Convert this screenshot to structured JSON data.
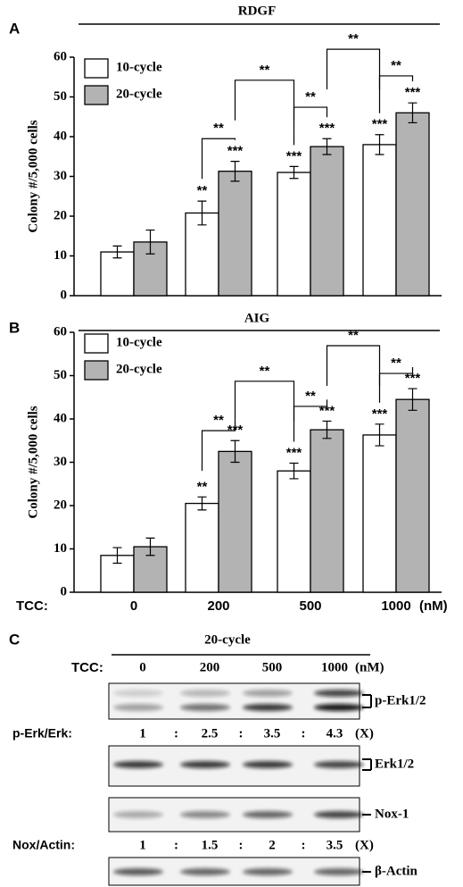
{
  "chart_data": [
    {
      "type": "bar",
      "panel": "A",
      "title": "RDGF",
      "ylabel": "Colony #/5,000 cells",
      "categories": [
        null,
        null,
        null,
        null
      ],
      "series": [
        {
          "name": "10-cycle",
          "color": "#ffffff",
          "values": [
            11,
            20.8,
            31,
            38
          ],
          "errors": [
            1.5,
            3,
            1.5,
            2.5
          ],
          "labels": [
            null,
            "**",
            "***",
            "***"
          ]
        },
        {
          "name": "20-cycle",
          "color": "#b3b3b3",
          "values": [
            13.5,
            31.3,
            37.5,
            46
          ],
          "errors": [
            3,
            2.5,
            2,
            2.5
          ],
          "labels": [
            null,
            "***",
            "***",
            "***"
          ]
        }
      ],
      "annotations": [
        "**",
        "**",
        "**",
        "**",
        "**"
      ],
      "ylim": [
        0,
        60
      ],
      "yticks": [
        0,
        10,
        20,
        30,
        40,
        50,
        60
      ],
      "legend": "upper left"
    },
    {
      "type": "bar",
      "panel": "B",
      "title": "AIG",
      "ylabel": "Colony #/5,000 cells",
      "xlabel": "TCC:",
      "xunit": "(nM)",
      "categories": [
        "0",
        "200",
        "500",
        "1000"
      ],
      "series": [
        {
          "name": "10-cycle",
          "color": "#ffffff",
          "values": [
            8.5,
            20.5,
            28,
            36.3
          ],
          "errors": [
            1.8,
            1.5,
            1.8,
            2.5
          ],
          "labels": [
            null,
            "**",
            "***",
            "***"
          ]
        },
        {
          "name": "20-cycle",
          "color": "#b3b3b3",
          "values": [
            10.5,
            32.5,
            37.5,
            44.5
          ],
          "errors": [
            2,
            2.5,
            2,
            2.5
          ],
          "labels": [
            null,
            "***",
            "***",
            "***"
          ]
        }
      ],
      "annotations": [
        "**",
        "**",
        "**",
        "**",
        "**"
      ],
      "ylim": [
        0,
        60
      ],
      "yticks": [
        0,
        10,
        20,
        30,
        40,
        50,
        60
      ],
      "legend": "upper left"
    }
  ],
  "blot": {
    "panel": "C",
    "header": "20-cycle",
    "tcc_label": "TCC:",
    "lanes": [
      "0",
      "200",
      "500",
      "1000"
    ],
    "unit": "(nM)",
    "blots": [
      {
        "label": "p-Erk1/2"
      },
      {
        "label": "Erk1/2"
      },
      {
        "label": "Nox-1"
      },
      {
        "label": "β-Actin"
      }
    ],
    "ratios": [
      {
        "label": "p-Erk/Erk:",
        "values": [
          1,
          2.5,
          3.5,
          4.3
        ],
        "unit": "(X)"
      },
      {
        "label": "Nox/Actin:",
        "values": [
          1,
          1.5,
          2,
          3.5
        ],
        "unit": "(X)"
      }
    ],
    "separator": ":"
  }
}
